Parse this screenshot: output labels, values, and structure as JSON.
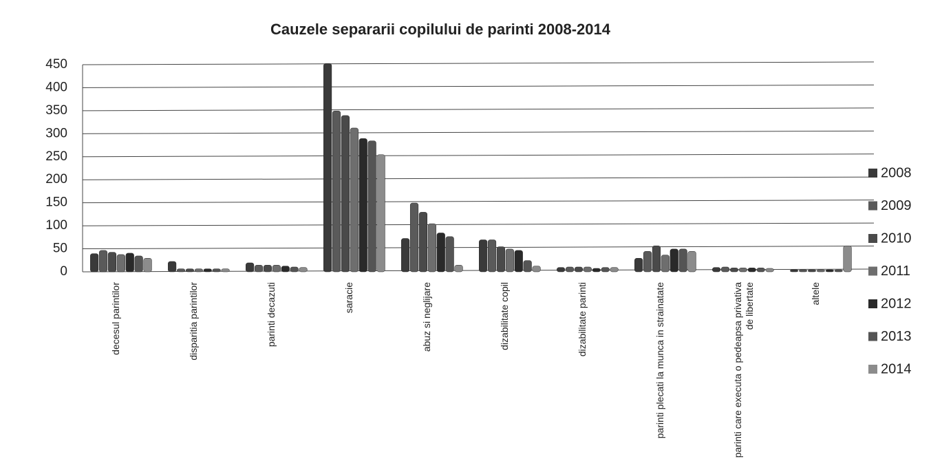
{
  "chart_data": {
    "type": "bar",
    "title": "Cauzele separarii copilului de parinti 2008-2014",
    "categories": [
      "decesul parintilor",
      "disparitia parintilor",
      "parinti decazuti",
      "saracie",
      "abuz si neglijare",
      "dizabilitate copil",
      "dizabilitate parinti",
      "parinti plecati la munca in strainatate",
      "parinti care executa o pedeapsa privativa de libertate",
      "altele"
    ],
    "series": [
      {
        "name": "2008",
        "color": "#3a3a3a",
        "values": [
          35,
          18,
          15,
          448,
          68,
          65,
          5,
          25,
          5,
          0
        ]
      },
      {
        "name": "2009",
        "color": "#5a5a5a",
        "values": [
          42,
          2,
          10,
          345,
          145,
          65,
          6,
          40,
          6,
          0
        ]
      },
      {
        "name": "2010",
        "color": "#4a4a4a",
        "values": [
          38,
          2,
          10,
          335,
          125,
          50,
          6,
          52,
          4,
          0
        ]
      },
      {
        "name": "2011",
        "color": "#6e6e6e",
        "values": [
          33,
          2,
          10,
          308,
          100,
          45,
          6,
          32,
          4,
          0
        ]
      },
      {
        "name": "2012",
        "color": "#2a2a2a",
        "values": [
          36,
          2,
          8,
          285,
          80,
          42,
          3,
          45,
          4,
          0
        ]
      },
      {
        "name": "2013",
        "color": "#555555",
        "values": [
          30,
          2,
          6,
          280,
          72,
          20,
          5,
          45,
          4,
          0
        ]
      },
      {
        "name": "2014",
        "color": "#8c8c8c",
        "values": [
          25,
          2,
          5,
          250,
          10,
          8,
          5,
          40,
          3,
          52
        ]
      }
    ],
    "ylim": [
      0,
      450
    ],
    "yticks": [
      0,
      50,
      100,
      150,
      200,
      250,
      300,
      350,
      400,
      450
    ],
    "grid": true,
    "legend": "right"
  }
}
